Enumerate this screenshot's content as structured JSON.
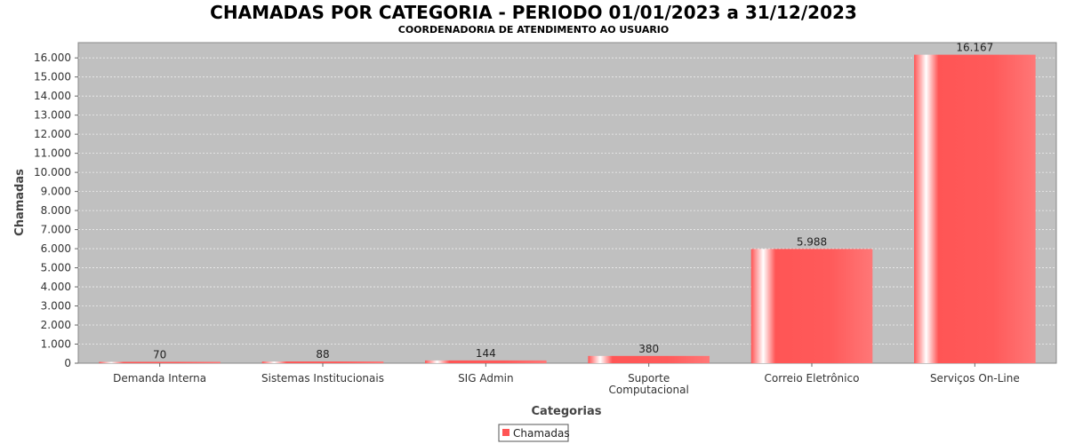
{
  "chart_data": {
    "type": "bar",
    "title": "CHAMADAS POR CATEGORIA - PERIODO 01/01/2023 a 31/12/2023",
    "subtitle": "COORDENADORIA DE ATENDIMENTO AO USUARIO",
    "xlabel": "Categorias",
    "ylabel": "Chamadas",
    "categories": [
      [
        "Demanda Interna"
      ],
      [
        "Sistemas Institucionais"
      ],
      [
        "SIG Admin"
      ],
      [
        "Suporte",
        "Computacional"
      ],
      [
        "Correio Eletrônico"
      ],
      [
        "Serviços On-Line"
      ]
    ],
    "series": [
      {
        "name": "Chamadas",
        "values": [
          70,
          88,
          144,
          380,
          5988,
          16167
        ],
        "value_labels": [
          "70",
          "88",
          "144",
          "380",
          "5.988",
          "16.167"
        ]
      }
    ],
    "ylim": [
      0,
      16800
    ],
    "yticks": [
      0,
      1000,
      2000,
      3000,
      4000,
      5000,
      6000,
      7000,
      8000,
      9000,
      10000,
      11000,
      12000,
      13000,
      14000,
      15000,
      16000
    ],
    "ytick_labels": [
      "0",
      "1.000",
      "2.000",
      "3.000",
      "4.000",
      "5.000",
      "6.000",
      "7.000",
      "8.000",
      "9.000",
      "10.000",
      "11.000",
      "12.000",
      "13.000",
      "14.000",
      "15.000",
      "16.000"
    ],
    "grid": true,
    "legend": "bottom-center",
    "colors": {
      "plot_background": "#c0c0c0",
      "bar": "#ff5555",
      "bar_highlight": "#ffffff",
      "grid": "#eeeeee"
    }
  }
}
